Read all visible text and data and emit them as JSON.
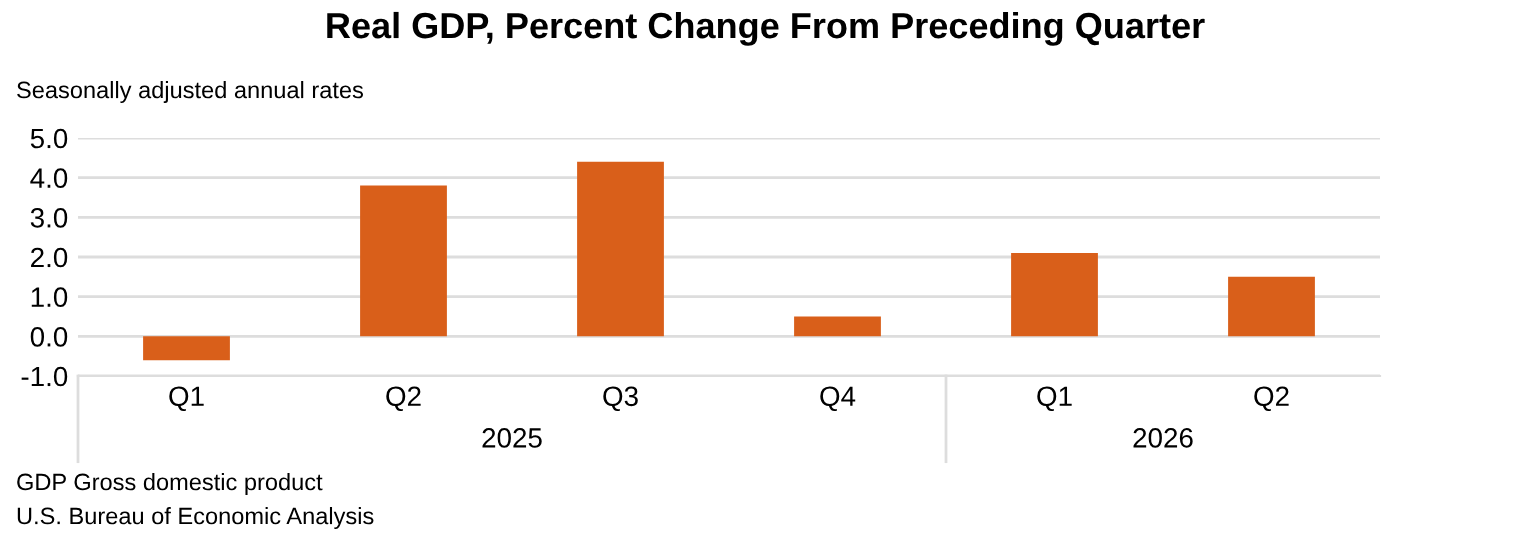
{
  "chart_data": {
    "type": "bar",
    "title": "Real GDP, Percent Change From Preceding Quarter",
    "ylabel": "Seasonally adjusted annual rates",
    "categories": [
      "Q1",
      "Q2",
      "Q3",
      "Q4",
      "Q1",
      "Q2"
    ],
    "values": [
      -0.6,
      3.8,
      4.4,
      0.5,
      2.1,
      1.5
    ],
    "color": "#d95f1a",
    "ylim": [
      -1,
      5
    ],
    "yticks": [
      {
        "value": -1,
        "label": "-1.0"
      },
      {
        "value": 0,
        "label": "0.0"
      },
      {
        "value": 1,
        "label": "1.0"
      },
      {
        "value": 2,
        "label": "2.0"
      },
      {
        "value": 3,
        "label": "3.0"
      },
      {
        "value": 4,
        "label": "4.0"
      },
      {
        "value": 5,
        "label": "5.0"
      }
    ],
    "grid": "y",
    "annotations": [
      "2025",
      "2026",
      "GDP Gross domestic product",
      "U.S. Bureau of Economic Analysis"
    ]
  }
}
